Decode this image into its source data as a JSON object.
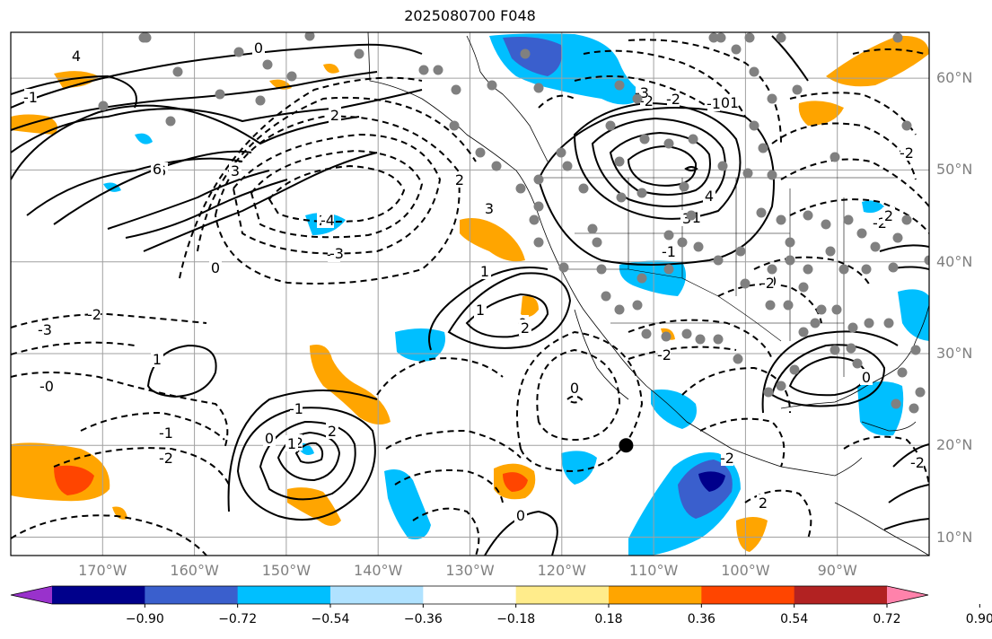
{
  "title": "2025080700 F048",
  "map": {
    "lat_labels": [
      {
        "text": "60°N",
        "lat": 60
      },
      {
        "text": "50°N",
        "lat": 50
      },
      {
        "text": "40°N",
        "lat": 40
      },
      {
        "text": "30°N",
        "lat": 30
      },
      {
        "text": "20°N",
        "lat": 20
      },
      {
        "text": "10°N",
        "lat": 10
      }
    ],
    "lon_labels": [
      {
        "text": "170°W",
        "lon": -170
      },
      {
        "text": "160°W",
        "lon": -160
      },
      {
        "text": "150°W",
        "lon": -150
      },
      {
        "text": "140°W",
        "lon": -140
      },
      {
        "text": "130°W",
        "lon": -130
      },
      {
        "text": "120°W",
        "lon": -120
      },
      {
        "text": "110°W",
        "lon": -110
      },
      {
        "text": "100°W",
        "lon": -100
      },
      {
        "text": "90°W",
        "lon": -90
      }
    ],
    "extent": {
      "lon_min": -180,
      "lon_max": -80,
      "lat_min": 8,
      "lat_max": 65
    },
    "marker": {
      "lon": -113,
      "lat": 20,
      "color": "#000000"
    },
    "contour_labels": [
      "0",
      "1",
      "2",
      "3",
      "4",
      "6",
      "-1",
      "-2",
      "-3",
      "-4",
      "-0",
      "0",
      "1",
      "2",
      "3",
      "0",
      "-1",
      "-2",
      "-2",
      "-1",
      "0",
      "2",
      "1",
      "0",
      "0",
      "-2",
      "-1",
      "-2",
      "-2",
      "1",
      "2",
      "0",
      "-2",
      "3",
      "-2",
      "-1",
      "-1",
      "0",
      "0",
      "-2",
      "-2",
      "1",
      "2",
      "-2",
      "2",
      "-3",
      "-4",
      "2",
      "4",
      "-3",
      "6",
      "-1",
      "0",
      "0"
    ],
    "station_color": "#808080"
  },
  "colorbar": {
    "colors": [
      "#9932cc",
      "#00008b",
      "#3a5fcd",
      "#00bfff",
      "#b0e2ff",
      "#ffffff",
      "#ffec8b",
      "#ffa500",
      "#ff4500",
      "#b22222",
      "#ff82ab"
    ],
    "tick_labels": [
      "−0.90",
      "−0.72",
      "−0.54",
      "−0.36",
      "−0.18",
      "0.18",
      "0.36",
      "0.54",
      "0.72",
      "0.90"
    ]
  }
}
